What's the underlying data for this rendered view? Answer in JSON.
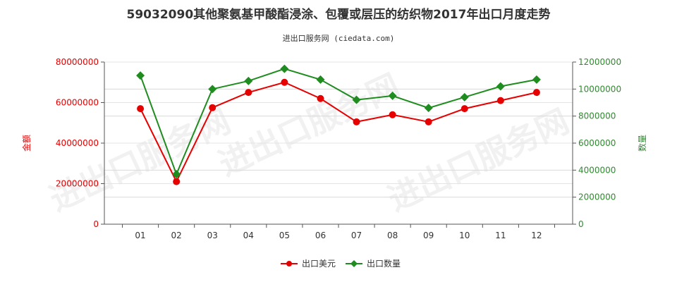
{
  "chart_data": {
    "type": "line",
    "title": "59032090其他聚氨基甲酸酯浸涂、包覆或层压的纺织物2017年出口月度走势",
    "subtitle": "进出口服务网 (ciedata.com)",
    "categories": [
      "01",
      "02",
      "03",
      "04",
      "05",
      "06",
      "07",
      "08",
      "09",
      "10",
      "11",
      "12"
    ],
    "y_left": {
      "label": "金额",
      "ylim": [
        0,
        80000000
      ],
      "ticks": [
        "0",
        "20000000",
        "40000000",
        "60000000",
        "80000000"
      ]
    },
    "y_right": {
      "label": "数量",
      "ylim": [
        0,
        12000000
      ],
      "ticks": [
        "0",
        "2000000",
        "4000000",
        "6000000",
        "8000000",
        "10000000",
        "12000000"
      ]
    },
    "series": [
      {
        "name": "出口美元",
        "axis": "left",
        "color": "#e60000",
        "marker": "circle",
        "values": [
          57000000,
          21000000,
          57500000,
          65000000,
          70000000,
          62000000,
          50500000,
          54000000,
          50500000,
          57000000,
          61000000,
          65000000
        ]
      },
      {
        "name": "出口数量",
        "axis": "right",
        "color": "#1e8c1e",
        "marker": "diamond",
        "values": [
          11000000,
          3700000,
          10000000,
          10600000,
          11500000,
          10700000,
          9200000,
          9500000,
          8600000,
          9400000,
          10200000,
          10700000
        ]
      }
    ],
    "grid": "horizontal",
    "legend_position": "bottom-center",
    "watermark": "进出口服务网"
  }
}
